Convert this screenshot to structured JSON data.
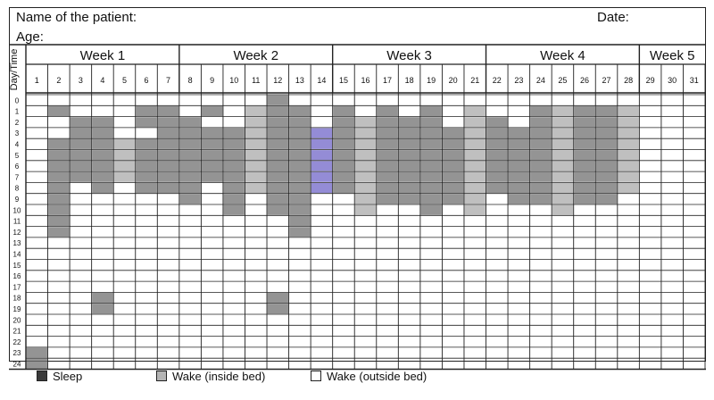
{
  "form": {
    "patient_label": "Name of the patient:",
    "date_label": "Date:",
    "age_label": "Age:",
    "corner_label": "Day/Time"
  },
  "weeks": [
    {
      "label": "Week 1",
      "days": [
        1,
        2,
        3,
        4,
        5,
        6,
        7
      ]
    },
    {
      "label": "Week 2",
      "days": [
        8,
        9,
        10,
        11,
        12,
        13,
        14
      ]
    },
    {
      "label": "Week 3",
      "days": [
        15,
        16,
        17,
        18,
        19,
        20,
        21
      ]
    },
    {
      "label": "Week 4",
      "days": [
        22,
        23,
        24,
        25,
        26,
        27,
        28
      ]
    },
    {
      "label": "Week 5",
      "days": [
        29,
        30,
        31
      ]
    }
  ],
  "hours": [
    "0",
    "1",
    "2",
    "3",
    "4",
    "5",
    "6",
    "7",
    "8",
    "9",
    "10",
    "11",
    "12",
    "13",
    "14",
    "15",
    "16",
    "17",
    "18",
    "19",
    "20",
    "21",
    "22",
    "23",
    "24"
  ],
  "legend": {
    "sleep": "Sleep",
    "wake_inside": "Wake (inside bed)",
    "wake_outside": "Wake (outside bed)"
  },
  "colors": {
    "sleep": "#3a3a3a",
    "wake_inside": "#b4b4b4",
    "ink": "#5a4fc0",
    "grid": "#222222"
  },
  "shading": {
    "description_key": "day:hour ranges shaded (1 = sleep-dark, 2 = lighter)",
    "cells": [
      {
        "day": 1,
        "hours": [
          23,
          24
        ],
        "tone": 1
      },
      {
        "day": 2,
        "hours": [
          1,
          4,
          5,
          6,
          7,
          8,
          9,
          10,
          11,
          12
        ],
        "tone": 1
      },
      {
        "day": 3,
        "hours": [
          2,
          3,
          4,
          5,
          6,
          7
        ],
        "tone": 1
      },
      {
        "day": 4,
        "hours": [
          2,
          3,
          4,
          5,
          6,
          7,
          8,
          18,
          19
        ],
        "tone": 1
      },
      {
        "day": 5,
        "hours": [
          4,
          5,
          6,
          7
        ],
        "tone": 2
      },
      {
        "day": 6,
        "hours": [
          1,
          2,
          4,
          5,
          6,
          7,
          8
        ],
        "tone": 1
      },
      {
        "day": 7,
        "hours": [
          1,
          2,
          3,
          4,
          5,
          6,
          7,
          8
        ],
        "tone": 1
      },
      {
        "day": 8,
        "hours": [
          2,
          3,
          4,
          5,
          6,
          7,
          8,
          9
        ],
        "tone": 1
      },
      {
        "day": 9,
        "hours": [
          1,
          3,
          4,
          5,
          6,
          7
        ],
        "tone": 1
      },
      {
        "day": 10,
        "hours": [
          3,
          4,
          5,
          6,
          7,
          8,
          9,
          10
        ],
        "tone": 1
      },
      {
        "day": 11,
        "hours": [
          1,
          2,
          3,
          4,
          5,
          6,
          7,
          8
        ],
        "tone": 2
      },
      {
        "day": 12,
        "hours": [
          0,
          1,
          2,
          3,
          4,
          5,
          6,
          7,
          8,
          9,
          10,
          18,
          19
        ],
        "tone": 1
      },
      {
        "day": 13,
        "hours": [
          1,
          2,
          3,
          4,
          5,
          6,
          7,
          8,
          9,
          10,
          11,
          12
        ],
        "tone": 1
      },
      {
        "day": 14,
        "hours": [
          3,
          4,
          5,
          6,
          7,
          8
        ],
        "tone": 3
      },
      {
        "day": 15,
        "hours": [
          1,
          2,
          3,
          4,
          5,
          6,
          7,
          8
        ],
        "tone": 1
      },
      {
        "day": 16,
        "hours": [
          2,
          3,
          4,
          5,
          6,
          7,
          8,
          9,
          10
        ],
        "tone": 2
      },
      {
        "day": 17,
        "hours": [
          1,
          2,
          3,
          4,
          5,
          6,
          7,
          8,
          9
        ],
        "tone": 1
      },
      {
        "day": 18,
        "hours": [
          2,
          3,
          4,
          5,
          6,
          7,
          8,
          9
        ],
        "tone": 1
      },
      {
        "day": 19,
        "hours": [
          1,
          2,
          3,
          4,
          5,
          6,
          7,
          8,
          9,
          10
        ],
        "tone": 1
      },
      {
        "day": 20,
        "hours": [
          3,
          4,
          5,
          6,
          7,
          8,
          9
        ],
        "tone": 1
      },
      {
        "day": 21,
        "hours": [
          1,
          2,
          3,
          4,
          5,
          6,
          7,
          8,
          9,
          10
        ],
        "tone": 2
      },
      {
        "day": 22,
        "hours": [
          2,
          3,
          4,
          5,
          6,
          7,
          8
        ],
        "tone": 1
      },
      {
        "day": 23,
        "hours": [
          3,
          4,
          5,
          6,
          7,
          8,
          9
        ],
        "tone": 1
      },
      {
        "day": 24,
        "hours": [
          1,
          2,
          3,
          4,
          5,
          6,
          7,
          8,
          9
        ],
        "tone": 1
      },
      {
        "day": 25,
        "hours": [
          1,
          2,
          3,
          4,
          5,
          6,
          7,
          8,
          9,
          10
        ],
        "tone": 2
      },
      {
        "day": 26,
        "hours": [
          1,
          2,
          3,
          4,
          5,
          6,
          7,
          8,
          9
        ],
        "tone": 1
      },
      {
        "day": 27,
        "hours": [
          1,
          2,
          3,
          4,
          5,
          6,
          7,
          8,
          9
        ],
        "tone": 1
      },
      {
        "day": 28,
        "hours": [
          1,
          2,
          3,
          4,
          5,
          6,
          7,
          8
        ],
        "tone": 2
      }
    ]
  }
}
